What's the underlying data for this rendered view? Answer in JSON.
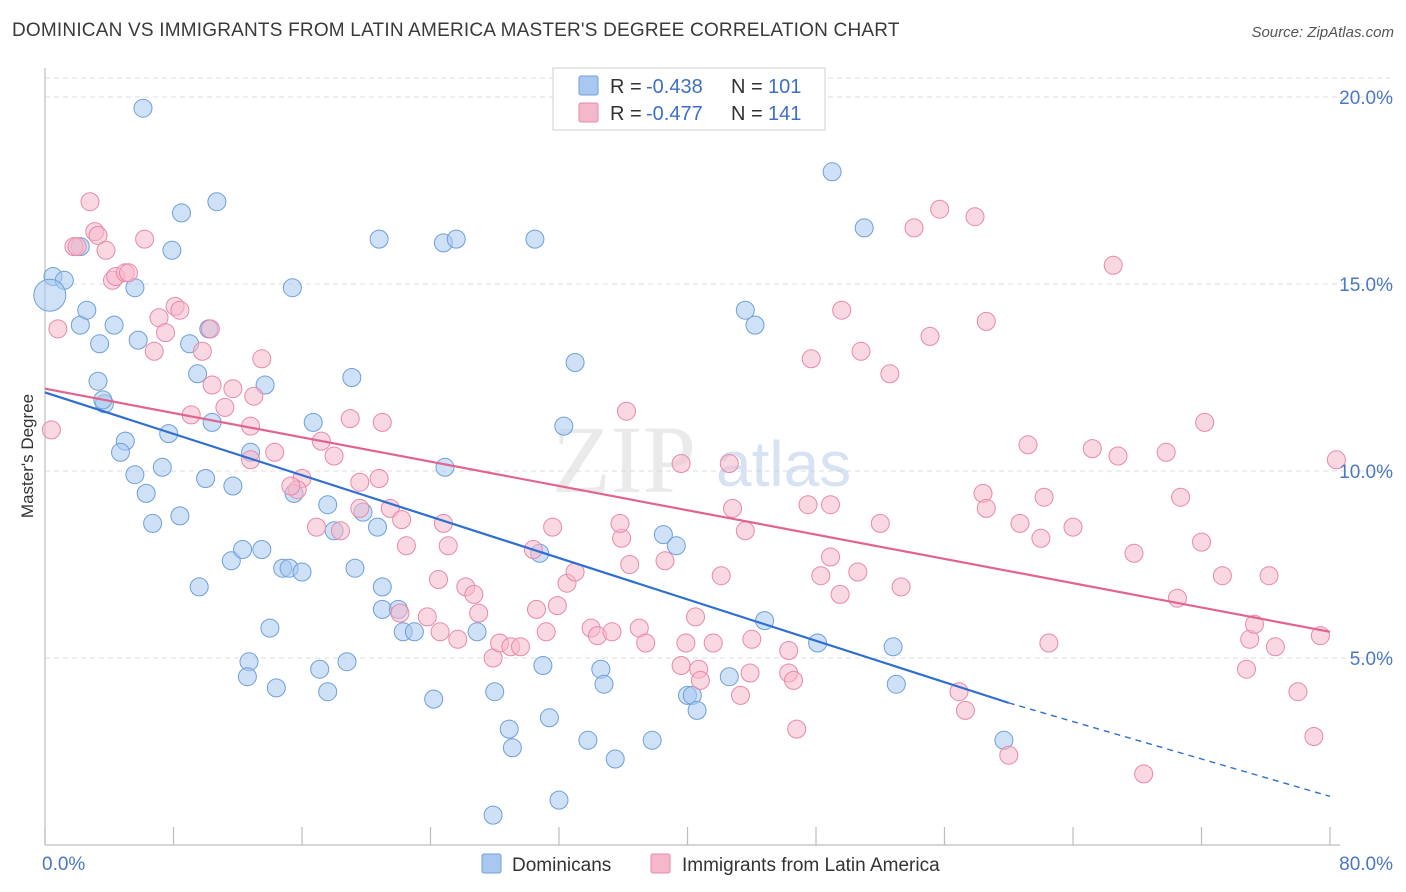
{
  "header": {
    "title": "DOMINICAN VS IMMIGRANTS FROM LATIN AMERICA MASTER'S DEGREE CORRELATION CHART",
    "source": "Source: ZipAtlas.com"
  },
  "watermark": {
    "zip": "ZIP",
    "atlas": "atlas"
  },
  "legend_box": {
    "rows": [
      {
        "r_label": "R = ",
        "r_value": "-0.438",
        "n_label": "N = ",
        "n_value": "101",
        "color": "#a8c8f0"
      },
      {
        "r_label": "R = ",
        "r_value": "-0.477",
        "n_label": "N = ",
        "n_value": "141",
        "color": "#f5b8cb"
      }
    ]
  },
  "bottom_legend": {
    "items": [
      {
        "label": "Dominicans",
        "color": "#a8c8f0"
      },
      {
        "label": "Immigrants from Latin America",
        "color": "#f5b8cb"
      }
    ]
  },
  "chart_data": {
    "type": "scatter",
    "title": "DOMINICAN VS IMMIGRANTS FROM LATIN AMERICA MASTER'S DEGREE CORRELATION CHART",
    "xlabel": "",
    "ylabel": "Master's Degree",
    "xlim": [
      0,
      80
    ],
    "ylim": [
      0,
      20.5
    ],
    "x_tick_labels": [
      "0.0%",
      "80.0%"
    ],
    "y_ticks": [
      5,
      10,
      15,
      20
    ],
    "y_tick_labels": [
      "5.0%",
      "10.0%",
      "15.0%",
      "20.0%"
    ],
    "grid": "horizontal dashed",
    "legend_placement": "top-center",
    "series": [
      {
        "name": "Dominicans",
        "color": "#a8c8f0",
        "stroke": "#6f9fd8",
        "trend_color": "#2f6fd0",
        "trend": {
          "x0": 0,
          "y0": 12.1,
          "x1": 60,
          "y1": 3.8,
          "dash_to_x": 80,
          "dash_to_y": 1.3
        },
        "points": [
          [
            6.1,
            19.7
          ],
          [
            0.5,
            15.2
          ],
          [
            1.2,
            15.1
          ],
          [
            2.2,
            16.0
          ],
          [
            5.6,
            14.9
          ],
          [
            8.5,
            16.9
          ],
          [
            7.9,
            15.9
          ],
          [
            10.7,
            17.2
          ],
          [
            15.4,
            14.9
          ],
          [
            20.8,
            16.2
          ],
          [
            24.8,
            16.1
          ],
          [
            25.6,
            16.2
          ],
          [
            30.5,
            16.2
          ],
          [
            49.0,
            18.0
          ],
          [
            51.0,
            16.5
          ],
          [
            2.2,
            13.9
          ],
          [
            2.6,
            14.3
          ],
          [
            3.4,
            13.4
          ],
          [
            4.3,
            13.9
          ],
          [
            5.8,
            13.5
          ],
          [
            9.0,
            13.4
          ],
          [
            10.2,
            13.8
          ],
          [
            3.3,
            12.4
          ],
          [
            9.5,
            12.6
          ],
          [
            13.7,
            12.3
          ],
          [
            19.1,
            12.5
          ],
          [
            3.7,
            11.8
          ],
          [
            3.6,
            11.9
          ],
          [
            7.7,
            11.0
          ],
          [
            10.4,
            11.3
          ],
          [
            5.0,
            10.8
          ],
          [
            4.7,
            10.5
          ],
          [
            12.8,
            10.5
          ],
          [
            16.7,
            11.3
          ],
          [
            24.9,
            10.1
          ],
          [
            32.3,
            11.2
          ],
          [
            33.0,
            12.9
          ],
          [
            43.6,
            14.3
          ],
          [
            44.2,
            13.9
          ],
          [
            5.6,
            9.9
          ],
          [
            7.3,
            10.1
          ],
          [
            6.3,
            9.4
          ],
          [
            10.0,
            9.8
          ],
          [
            11.7,
            9.6
          ],
          [
            6.7,
            8.6
          ],
          [
            8.4,
            8.8
          ],
          [
            15.5,
            9.4
          ],
          [
            17.6,
            9.1
          ],
          [
            18.0,
            8.4
          ],
          [
            19.8,
            8.9
          ],
          [
            20.7,
            8.5
          ],
          [
            11.6,
            7.6
          ],
          [
            12.3,
            7.9
          ],
          [
            13.5,
            7.9
          ],
          [
            14.8,
            7.4
          ],
          [
            15.2,
            7.4
          ],
          [
            16.0,
            7.3
          ],
          [
            19.3,
            7.4
          ],
          [
            9.6,
            6.9
          ],
          [
            21.0,
            6.9
          ],
          [
            21.0,
            6.3
          ],
          [
            22.0,
            6.3
          ],
          [
            22.3,
            5.7
          ],
          [
            23.0,
            5.7
          ],
          [
            14.0,
            5.8
          ],
          [
            12.7,
            4.9
          ],
          [
            12.6,
            4.5
          ],
          [
            14.4,
            4.2
          ],
          [
            17.1,
            4.7
          ],
          [
            17.6,
            4.1
          ],
          [
            18.8,
            4.9
          ],
          [
            24.2,
            3.9
          ],
          [
            28.0,
            4.1
          ],
          [
            30.8,
            7.8
          ],
          [
            31.0,
            4.8
          ],
          [
            34.6,
            4.7
          ],
          [
            34.8,
            4.3
          ],
          [
            38.5,
            8.3
          ],
          [
            39.3,
            8.0
          ],
          [
            40.0,
            4.0
          ],
          [
            40.3,
            4.0
          ],
          [
            40.6,
            3.6
          ],
          [
            42.6,
            4.5
          ],
          [
            44.8,
            6.0
          ],
          [
            48.1,
            5.4
          ],
          [
            52.8,
            5.3
          ],
          [
            53.0,
            4.3
          ],
          [
            28.9,
            3.1
          ],
          [
            29.1,
            2.6
          ],
          [
            31.4,
            3.4
          ],
          [
            33.8,
            2.8
          ],
          [
            35.5,
            2.3
          ],
          [
            37.8,
            2.8
          ],
          [
            59.7,
            2.8
          ],
          [
            27.9,
            0.8
          ],
          [
            32.0,
            1.2
          ],
          [
            26.9,
            5.7
          ],
          [
            0.3,
            14.7
          ]
        ]
      },
      {
        "name": "Immigrants from Latin America",
        "color": "#f5b8cb",
        "stroke": "#e889a9",
        "trend_color": "#e0648f",
        "trend": {
          "x0": 0,
          "y0": 12.2,
          "x1": 80,
          "y1": 5.7
        },
        "points": [
          [
            0.4,
            11.1
          ],
          [
            0.8,
            13.8
          ],
          [
            1.8,
            16.0
          ],
          [
            2.0,
            16.0
          ],
          [
            2.8,
            17.2
          ],
          [
            3.1,
            16.4
          ],
          [
            3.3,
            16.3
          ],
          [
            3.8,
            15.9
          ],
          [
            4.2,
            15.1
          ],
          [
            4.4,
            15.2
          ],
          [
            5.0,
            15.3
          ],
          [
            5.2,
            15.3
          ],
          [
            6.2,
            16.2
          ],
          [
            7.1,
            14.1
          ],
          [
            7.5,
            13.7
          ],
          [
            8.1,
            14.4
          ],
          [
            8.4,
            14.3
          ],
          [
            9.8,
            13.2
          ],
          [
            10.3,
            13.8
          ],
          [
            6.8,
            13.2
          ],
          [
            13.5,
            13.0
          ],
          [
            10.4,
            12.3
          ],
          [
            11.7,
            12.2
          ],
          [
            13.0,
            12.0
          ],
          [
            9.1,
            11.5
          ],
          [
            11.2,
            11.7
          ],
          [
            12.8,
            11.2
          ],
          [
            14.3,
            10.5
          ],
          [
            12.8,
            10.3
          ],
          [
            17.2,
            10.8
          ],
          [
            18.0,
            10.4
          ],
          [
            19.0,
            11.4
          ],
          [
            21.0,
            11.3
          ],
          [
            19.6,
            9.7
          ],
          [
            20.8,
            9.8
          ],
          [
            16.0,
            9.8
          ],
          [
            15.7,
            9.5
          ],
          [
            15.3,
            9.6
          ],
          [
            16.9,
            8.5
          ],
          [
            18.4,
            8.4
          ],
          [
            19.6,
            9.0
          ],
          [
            21.5,
            9.0
          ],
          [
            22.2,
            8.7
          ],
          [
            24.8,
            8.6
          ],
          [
            22.5,
            8.0
          ],
          [
            25.1,
            8.0
          ],
          [
            24.5,
            7.1
          ],
          [
            26.2,
            6.9
          ],
          [
            22.1,
            6.2
          ],
          [
            23.8,
            6.1
          ],
          [
            24.6,
            5.7
          ],
          [
            25.7,
            5.5
          ],
          [
            26.7,
            6.7
          ],
          [
            27.0,
            6.2
          ],
          [
            27.9,
            5.0
          ],
          [
            28.3,
            5.4
          ],
          [
            29.0,
            5.3
          ],
          [
            29.6,
            5.3
          ],
          [
            30.6,
            6.3
          ],
          [
            31.2,
            5.7
          ],
          [
            30.4,
            7.9
          ],
          [
            31.6,
            8.5
          ],
          [
            32.5,
            7.0
          ],
          [
            33.0,
            7.3
          ],
          [
            31.9,
            6.4
          ],
          [
            34.0,
            5.8
          ],
          [
            34.4,
            5.6
          ],
          [
            35.3,
            5.7
          ],
          [
            35.9,
            8.2
          ],
          [
            35.8,
            8.6
          ],
          [
            36.2,
            11.6
          ],
          [
            36.4,
            7.5
          ],
          [
            37.0,
            5.8
          ],
          [
            37.4,
            5.4
          ],
          [
            38.6,
            7.6
          ],
          [
            39.6,
            10.2
          ],
          [
            39.9,
            5.4
          ],
          [
            40.5,
            6.1
          ],
          [
            39.6,
            4.8
          ],
          [
            40.7,
            4.7
          ],
          [
            40.8,
            4.4
          ],
          [
            41.6,
            5.4
          ],
          [
            42.1,
            7.2
          ],
          [
            42.8,
            9.0
          ],
          [
            42.6,
            10.2
          ],
          [
            43.6,
            8.4
          ],
          [
            43.3,
            4.0
          ],
          [
            43.9,
            4.6
          ],
          [
            44.0,
            5.5
          ],
          [
            46.3,
            5.2
          ],
          [
            46.8,
            3.1
          ],
          [
            46.3,
            4.6
          ],
          [
            46.6,
            4.4
          ],
          [
            47.5,
            9.1
          ],
          [
            48.3,
            7.2
          ],
          [
            48.9,
            9.1
          ],
          [
            48.9,
            7.7
          ],
          [
            49.5,
            6.7
          ],
          [
            50.6,
            7.3
          ],
          [
            47.7,
            13.0
          ],
          [
            49.6,
            14.3
          ],
          [
            50.8,
            13.2
          ],
          [
            52.6,
            12.6
          ],
          [
            52.0,
            8.6
          ],
          [
            53.3,
            6.9
          ],
          [
            54.1,
            16.5
          ],
          [
            55.1,
            13.6
          ],
          [
            55.7,
            17.0
          ],
          [
            57.9,
            16.8
          ],
          [
            58.6,
            14.0
          ],
          [
            56.9,
            4.1
          ],
          [
            57.3,
            3.6
          ],
          [
            58.4,
            9.4
          ],
          [
            58.6,
            9.0
          ],
          [
            60.0,
            2.4
          ],
          [
            60.7,
            8.6
          ],
          [
            61.2,
            10.7
          ],
          [
            62.0,
            8.2
          ],
          [
            62.2,
            9.3
          ],
          [
            62.5,
            5.4
          ],
          [
            64.0,
            8.5
          ],
          [
            65.2,
            10.6
          ],
          [
            66.5,
            15.5
          ],
          [
            66.8,
            10.4
          ],
          [
            67.8,
            7.8
          ],
          [
            68.4,
            1.9
          ],
          [
            69.8,
            10.5
          ],
          [
            70.5,
            6.6
          ],
          [
            70.7,
            9.3
          ],
          [
            72.0,
            8.1
          ],
          [
            72.2,
            11.3
          ],
          [
            73.3,
            7.2
          ],
          [
            74.8,
            4.7
          ],
          [
            75.0,
            5.5
          ],
          [
            75.3,
            5.9
          ],
          [
            76.2,
            7.2
          ],
          [
            76.6,
            5.3
          ],
          [
            78.0,
            4.1
          ],
          [
            79.0,
            2.9
          ],
          [
            79.4,
            5.6
          ],
          [
            80.4,
            10.3
          ]
        ]
      }
    ]
  }
}
